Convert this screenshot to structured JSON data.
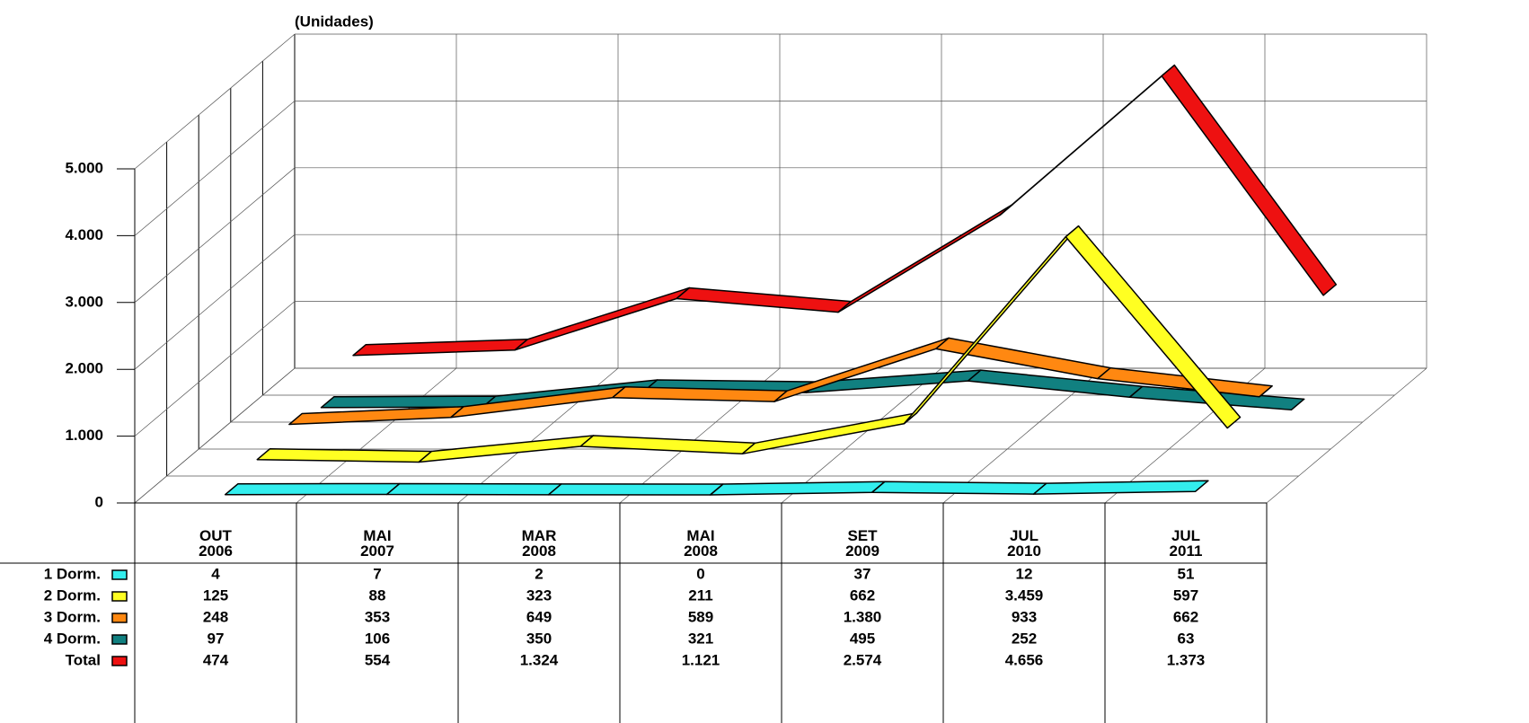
{
  "chart_data": {
    "type": "line",
    "title": "(Unidades)",
    "categories": [
      "OUT\n2006",
      "MAI\n2007",
      "MAR\n2008",
      "MAI\n2008",
      "SET\n2009",
      "JUL\n2010",
      "JUL\n2011"
    ],
    "series": [
      {
        "name": "1 Dorm.",
        "color": "#33eeee",
        "values": [
          4,
          7,
          2,
          0,
          37,
          12,
          51
        ],
        "value_labels": [
          "4",
          "7",
          "2",
          "0",
          "37",
          "12",
          "51"
        ]
      },
      {
        "name": "2 Dorm.",
        "color": "#ffff22",
        "values": [
          125,
          88,
          323,
          211,
          662,
          3459,
          597
        ],
        "value_labels": [
          "125",
          "88",
          "323",
          "211",
          "662",
          "3.459",
          "597"
        ]
      },
      {
        "name": "3 Dorm.",
        "color": "#ff8811",
        "values": [
          248,
          353,
          649,
          589,
          1380,
          933,
          662
        ],
        "value_labels": [
          "248",
          "353",
          "649",
          "589",
          "1.380",
          "933",
          "662"
        ]
      },
      {
        "name": "4 Dorm.",
        "color": "#118080",
        "values": [
          97,
          106,
          350,
          321,
          495,
          252,
          63
        ],
        "value_labels": [
          "97",
          "106",
          "350",
          "321",
          "495",
          "252",
          "63"
        ]
      },
      {
        "name": "Total",
        "color": "#ee1111",
        "values": [
          474,
          554,
          1324,
          1121,
          2574,
          4656,
          1373
        ],
        "value_labels": [
          "474",
          "554",
          "1.324",
          "1.121",
          "2.574",
          "4.656",
          "1.373"
        ]
      }
    ],
    "ylim": [
      0,
      5000
    ],
    "yticks": [
      0,
      {
        "value": 1000,
        "label": "1.000"
      },
      {
        "value": 2000,
        "label": "2.000"
      },
      {
        "value": 3000,
        "label": "3.000"
      },
      {
        "value": 4000,
        "label": "4.000"
      },
      {
        "value": 5000,
        "label": "5.000"
      }
    ],
    "grid": true
  }
}
